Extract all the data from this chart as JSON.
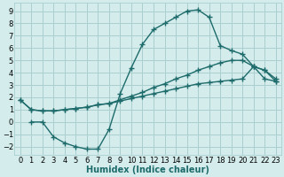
{
  "background_color": "#d4ecec",
  "grid_color": "#aacfcf",
  "line_color": "#1e6b6b",
  "line_width": 1.0,
  "marker": "+",
  "marker_size": 4,
  "marker_linewidth": 1.0,
  "xlabel": "Humidex (Indice chaleur)",
  "xlabel_fontsize": 7,
  "tick_fontsize": 6,
  "xlim": [
    -0.5,
    23.5
  ],
  "ylim": [
    -2.7,
    9.7
  ],
  "xticks": [
    0,
    1,
    2,
    3,
    4,
    5,
    6,
    7,
    8,
    9,
    10,
    11,
    12,
    13,
    14,
    15,
    16,
    17,
    18,
    19,
    20,
    21,
    22,
    23
  ],
  "yticks": [
    -2,
    -1,
    0,
    1,
    2,
    3,
    4,
    5,
    6,
    7,
    8,
    9
  ],
  "curve1_x": [
    1,
    2,
    3,
    4,
    5,
    6,
    7,
    8,
    9,
    10,
    11,
    12,
    13,
    14,
    15,
    16,
    17,
    18,
    19,
    20,
    21,
    22,
    23
  ],
  "curve1_y": [
    0.0,
    0.0,
    -1.2,
    -1.7,
    -2.0,
    -2.2,
    -2.2,
    -0.6,
    2.3,
    4.4,
    6.3,
    7.5,
    8.0,
    8.5,
    9.0,
    9.1,
    8.5,
    6.2,
    5.8,
    5.5,
    4.5,
    3.5,
    3.3
  ],
  "curve2_x": [
    0,
    1,
    2,
    3,
    4,
    5,
    6,
    7,
    8,
    9,
    10,
    11,
    12,
    13,
    14,
    15,
    16,
    17,
    18,
    19,
    20,
    21,
    22,
    23
  ],
  "curve2_y": [
    1.8,
    1.0,
    0.9,
    0.9,
    1.0,
    1.1,
    1.2,
    1.4,
    1.5,
    1.7,
    1.9,
    2.1,
    2.3,
    2.5,
    2.7,
    2.9,
    3.1,
    3.2,
    3.3,
    3.4,
    3.5,
    4.5,
    4.2,
    3.3
  ],
  "curve3_x": [
    0,
    1,
    2,
    3,
    4,
    5,
    6,
    7,
    8,
    9,
    10,
    11,
    12,
    13,
    14,
    15,
    16,
    17,
    18,
    19,
    20,
    21,
    22,
    23
  ],
  "curve3_y": [
    1.8,
    1.0,
    0.9,
    0.9,
    1.0,
    1.1,
    1.2,
    1.4,
    1.5,
    1.8,
    2.1,
    2.4,
    2.8,
    3.1,
    3.5,
    3.8,
    4.2,
    4.5,
    4.8,
    5.0,
    5.0,
    4.5,
    4.2,
    3.5
  ]
}
